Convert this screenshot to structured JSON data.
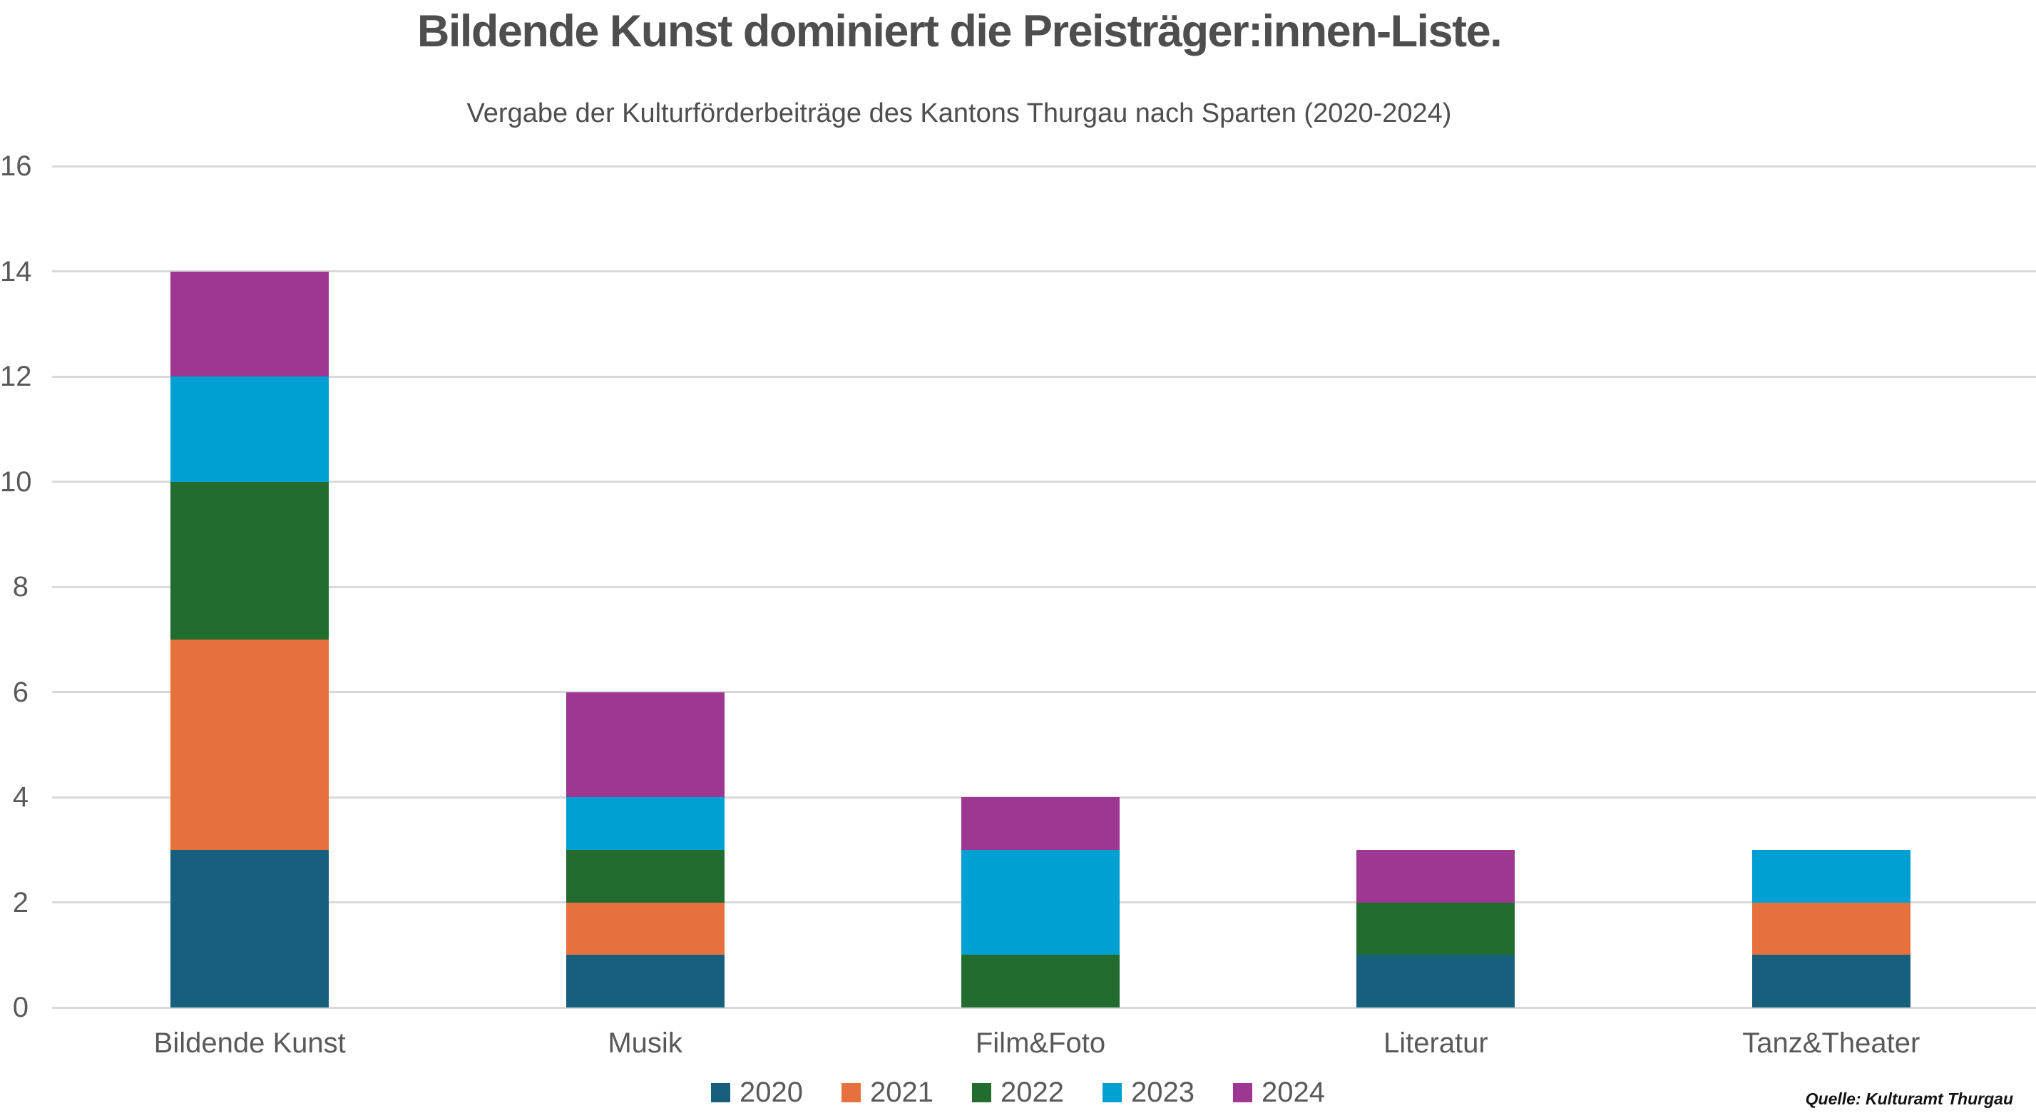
{
  "chart_data": {
    "type": "bar",
    "stacked": true,
    "title": "Bildende Kunst dominiert die Preisträger:innen-Liste.",
    "subtitle": "Vergabe der Kulturförderbeiträge des Kantons Thurgau nach Sparten (2020-2024)",
    "categories": [
      "Bildende Kunst",
      "Musik",
      "Film&Foto",
      "Literatur",
      "Tanz&Theater"
    ],
    "series": [
      {
        "name": "2020",
        "color": "#16607d",
        "values": [
          3,
          1,
          0,
          1,
          1
        ]
      },
      {
        "name": "2021",
        "color": "#e7713c",
        "values": [
          4,
          1,
          0,
          0,
          1
        ]
      },
      {
        "name": "2022",
        "color": "#226c2f",
        "values": [
          3,
          1,
          1,
          1,
          0
        ]
      },
      {
        "name": "2023",
        "color": "#00a1d2",
        "values": [
          2,
          1,
          2,
          0,
          1
        ]
      },
      {
        "name": "2024",
        "color": "#9e3792",
        "values": [
          2,
          2,
          1,
          1,
          0
        ]
      }
    ],
    "totals": [
      14,
      6,
      4,
      3,
      3
    ],
    "ylim": [
      0,
      16
    ],
    "yticks": [
      0,
      2,
      4,
      6,
      8,
      10,
      12,
      14,
      16
    ],
    "grid": "horizontal",
    "legend_position": "bottom",
    "source": "Quelle: Kulturamt Thurgau",
    "colors": {
      "grid": "#d9d9d9",
      "axis_text": "#595959",
      "title_text": "#4e4e4e"
    }
  }
}
